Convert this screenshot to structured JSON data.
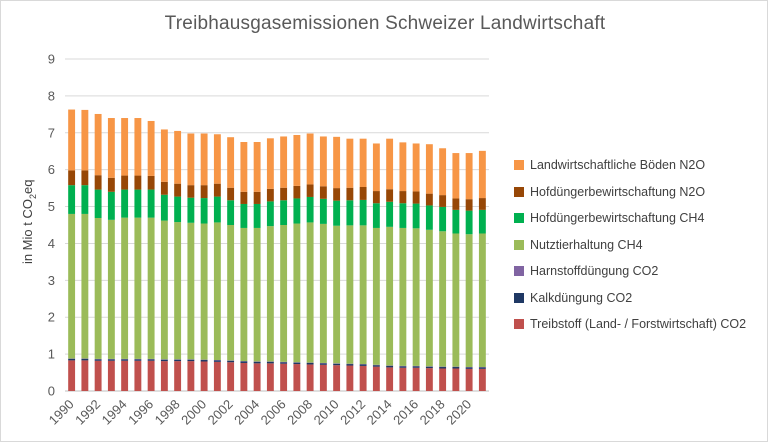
{
  "chart_data": {
    "type": "bar",
    "stacked": true,
    "title": "Treibhausgasemissionen Schweizer Landwirtschaft",
    "ylabel_prefix": "in Mio t CO",
    "ylabel_sub": "2",
    "ylabel_suffix": "eq",
    "xlabel": "",
    "ylim": [
      0,
      9
    ],
    "yticks": [
      "0",
      "1",
      "2",
      "3",
      "4",
      "5",
      "6",
      "7",
      "8",
      "9"
    ],
    "grid": true,
    "legend_position": "right",
    "categories": [
      "1990",
      "1991",
      "1992",
      "1993",
      "1994",
      "1995",
      "1996",
      "1997",
      "1998",
      "1999",
      "2000",
      "2001",
      "2002",
      "2003",
      "2004",
      "2005",
      "2006",
      "2007",
      "2008",
      "2009",
      "2010",
      "2011",
      "2012",
      "2013",
      "2014",
      "2015",
      "2016",
      "2017",
      "2018",
      "2019",
      "2020",
      "2021"
    ],
    "xtick_labels": [
      "1990",
      "",
      "1992",
      "",
      "1994",
      "",
      "1996",
      "",
      "1998",
      "",
      "2000",
      "",
      "2002",
      "",
      "2004",
      "",
      "2006",
      "",
      "2008",
      "",
      "2010",
      "",
      "2012",
      "",
      "2014",
      "",
      "2016",
      "",
      "2018",
      "",
      "2020",
      ""
    ],
    "series": [
      {
        "name": "Treibstoff (Land- / Forstwirtschaft) CO2",
        "color": "#c0504d",
        "values": [
          0.83,
          0.83,
          0.82,
          0.82,
          0.82,
          0.82,
          0.82,
          0.81,
          0.81,
          0.81,
          0.8,
          0.79,
          0.78,
          0.76,
          0.75,
          0.75,
          0.74,
          0.73,
          0.72,
          0.71,
          0.7,
          0.69,
          0.68,
          0.66,
          0.64,
          0.63,
          0.63,
          0.62,
          0.61,
          0.61,
          0.6,
          0.6
        ]
      },
      {
        "name": "Kalkdüngung CO2",
        "color": "#1f3864",
        "values": [
          0.04,
          0.04,
          0.04,
          0.04,
          0.04,
          0.04,
          0.04,
          0.04,
          0.04,
          0.04,
          0.04,
          0.04,
          0.04,
          0.04,
          0.04,
          0.04,
          0.04,
          0.04,
          0.04,
          0.04,
          0.04,
          0.04,
          0.04,
          0.04,
          0.04,
          0.04,
          0.04,
          0.04,
          0.04,
          0.04,
          0.04,
          0.04
        ]
      },
      {
        "name": "Harnstoffdüngung CO2",
        "color": "#8064a2",
        "values": [
          0.01,
          0.01,
          0.01,
          0.01,
          0.01,
          0.01,
          0.01,
          0.01,
          0.01,
          0.01,
          0.01,
          0.01,
          0.01,
          0.01,
          0.01,
          0.01,
          0.01,
          0.01,
          0.01,
          0.01,
          0.01,
          0.01,
          0.01,
          0.01,
          0.01,
          0.01,
          0.01,
          0.01,
          0.01,
          0.01,
          0.01,
          0.01
        ]
      },
      {
        "name": "Nutztierhaltung CH4",
        "color": "#9bbb59",
        "values": [
          3.92,
          3.92,
          3.82,
          3.77,
          3.83,
          3.83,
          3.83,
          3.76,
          3.72,
          3.7,
          3.69,
          3.73,
          3.67,
          3.61,
          3.62,
          3.67,
          3.71,
          3.76,
          3.8,
          3.77,
          3.73,
          3.75,
          3.76,
          3.71,
          3.76,
          3.74,
          3.73,
          3.7,
          3.67,
          3.61,
          3.6,
          3.62
        ]
      },
      {
        "name": "Hofdüngerbewirtschaftung CH4",
        "color": "#00b050",
        "values": [
          0.78,
          0.78,
          0.77,
          0.76,
          0.76,
          0.76,
          0.76,
          0.7,
          0.69,
          0.68,
          0.69,
          0.7,
          0.67,
          0.65,
          0.65,
          0.67,
          0.67,
          0.68,
          0.69,
          0.68,
          0.68,
          0.68,
          0.69,
          0.67,
          0.68,
          0.67,
          0.67,
          0.66,
          0.66,
          0.64,
          0.64,
          0.64
        ]
      },
      {
        "name": "Hofdüngerbewirtschaftung N2O",
        "color": "#974706",
        "values": [
          0.4,
          0.4,
          0.39,
          0.38,
          0.38,
          0.38,
          0.37,
          0.35,
          0.35,
          0.34,
          0.35,
          0.35,
          0.34,
          0.33,
          0.33,
          0.34,
          0.34,
          0.34,
          0.34,
          0.34,
          0.34,
          0.34,
          0.35,
          0.33,
          0.34,
          0.33,
          0.33,
          0.32,
          0.32,
          0.31,
          0.31,
          0.32
        ]
      },
      {
        "name": "Landwirtschaftliche Böden N2O",
        "color": "#f79646",
        "values": [
          1.65,
          1.64,
          1.66,
          1.62,
          1.56,
          1.56,
          1.49,
          1.42,
          1.43,
          1.4,
          1.4,
          1.34,
          1.37,
          1.35,
          1.35,
          1.37,
          1.39,
          1.38,
          1.38,
          1.35,
          1.39,
          1.33,
          1.31,
          1.29,
          1.37,
          1.32,
          1.3,
          1.34,
          1.27,
          1.23,
          1.25,
          1.28
        ]
      }
    ]
  }
}
